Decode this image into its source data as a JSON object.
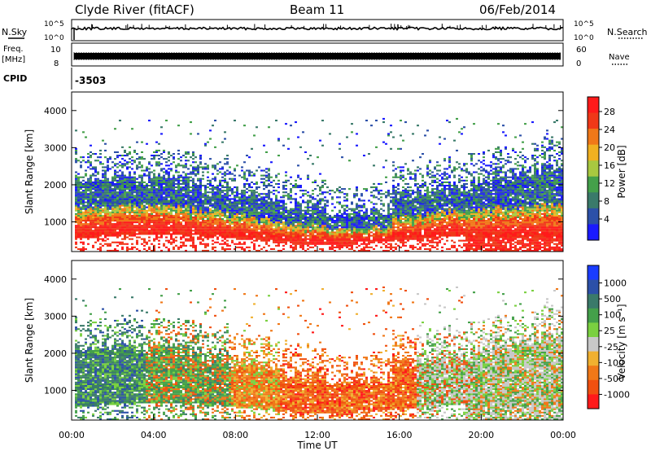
{
  "header": {
    "station": "Clyde River (fitACF)",
    "beam": "Beam 11",
    "date": "06/Feb/2014"
  },
  "side_labels": {
    "nsky": "N.Sky",
    "nsearch": "N.Search",
    "freq": "Freq.",
    "freq_unit": "[MHz]",
    "nave": "Nave",
    "cpid_label": "CPID",
    "cpid_value": "-3503"
  },
  "noise_panel": {
    "left_ticks": [
      "10^5",
      "10^0"
    ],
    "right_ticks": [
      "10^5",
      "10^0"
    ]
  },
  "freq_panel": {
    "left_ticks": [
      "10",
      "8"
    ],
    "right_ticks": [
      "60",
      "0"
    ]
  },
  "colors": {
    "power": [
      "#1a1aff",
      "#2c50a8",
      "#3a7a6a",
      "#44a04a",
      "#a8c840",
      "#f0b020",
      "#f07818",
      "#f03818",
      "#ff1a1a"
    ],
    "velocity": [
      "#ff1a1a",
      "#f05010",
      "#f07818",
      "#f0b030",
      "#c8c8c8",
      "#7ad040",
      "#44a04a",
      "#3a7a6a",
      "#2c50a8",
      "#1a3cff"
    ]
  },
  "chart_data": [
    {
      "type": "heatmap",
      "name": "power",
      "ylabel": "Slant Range [km]",
      "yticks": [
        "1000",
        "2000",
        "3000",
        "4000"
      ],
      "ylim": [
        200,
        4500
      ],
      "colorbar_label": "Power [dB]",
      "colorbar_ticks": [
        "4",
        "8",
        "12",
        "16",
        "20",
        "24",
        "28"
      ]
    },
    {
      "type": "heatmap",
      "name": "velocity",
      "ylabel": "Slant Range [km]",
      "yticks": [
        "1000",
        "2000",
        "3000",
        "4000"
      ],
      "ylim": [
        200,
        4500
      ],
      "colorbar_label": "Velocity [m s⁻¹]",
      "colorbar_ticks": [
        "1000",
        "500",
        "100",
        "25",
        "-25",
        "-100",
        "-500",
        "-1000"
      ],
      "xlabel": "Time UT",
      "xticks": [
        "00:00",
        "04:00",
        "08:00",
        "12:00",
        "16:00",
        "20:00",
        "00:00"
      ]
    }
  ]
}
